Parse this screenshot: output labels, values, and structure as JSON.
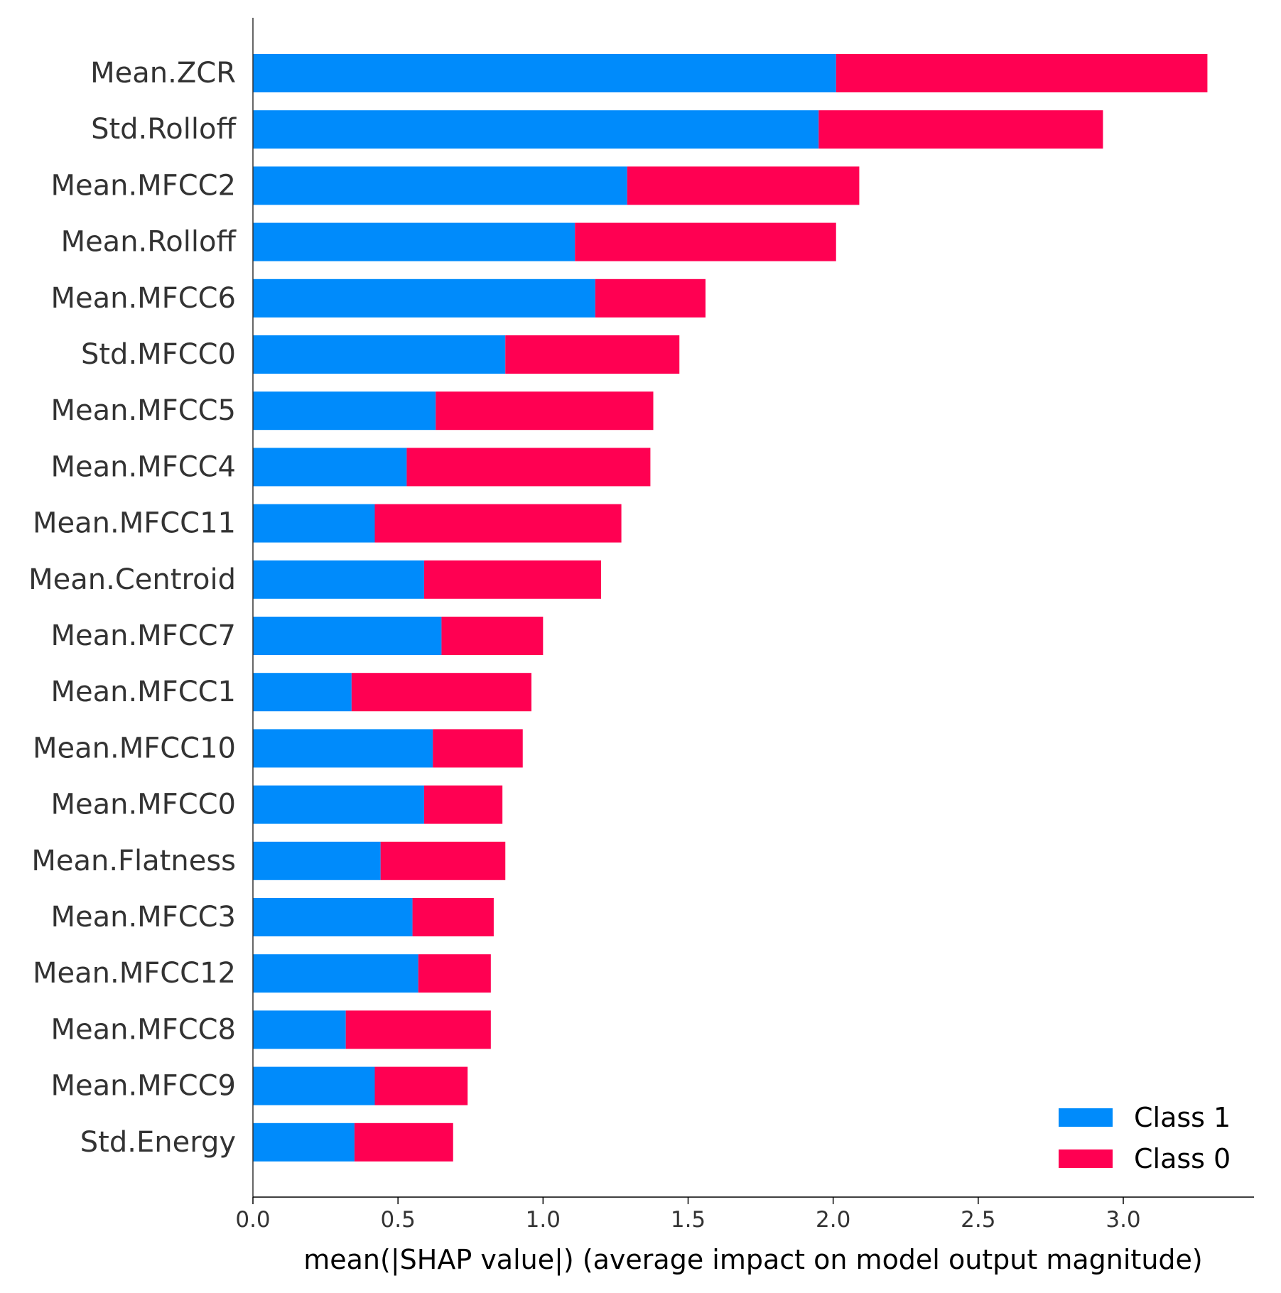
{
  "chart_data": {
    "type": "bar",
    "orientation": "horizontal",
    "stacked": true,
    "xlabel": "mean(|SHAP value|) (average impact on model output magnitude)",
    "ylabel": "",
    "title": "",
    "xlim": [
      0,
      3.45
    ],
    "xticks": [
      "0.0",
      "0.5",
      "1.0",
      "1.5",
      "2.0",
      "2.5",
      "3.0"
    ],
    "xtick_values": [
      0,
      0.5,
      1.0,
      1.5,
      2.0,
      2.5,
      3.0
    ],
    "grid": false,
    "legend_position": "bottom-right",
    "categories": [
      "Mean.ZCR",
      "Std.Rolloff",
      "Mean.MFCC2",
      "Mean.Rolloff",
      "Mean.MFCC6",
      "Std.MFCC0",
      "Mean.MFCC5",
      "Mean.MFCC4",
      "Mean.MFCC11",
      "Mean.Centroid",
      "Mean.MFCC7",
      "Mean.MFCC1",
      "Mean.MFCC10",
      "Mean.MFCC0",
      "Mean.Flatness",
      "Mean.MFCC3",
      "Mean.MFCC12",
      "Mean.MFCC8",
      "Mean.MFCC9",
      "Std.Energy"
    ],
    "series": [
      {
        "name": "Class 1",
        "color": "#008bfb",
        "values": [
          2.01,
          1.95,
          1.29,
          1.11,
          1.18,
          0.87,
          0.63,
          0.53,
          0.42,
          0.59,
          0.65,
          0.34,
          0.62,
          0.59,
          0.44,
          0.55,
          0.57,
          0.32,
          0.42,
          0.35
        ]
      },
      {
        "name": "Class 0",
        "color": "#ff0052",
        "values": [
          1.28,
          0.98,
          0.8,
          0.9,
          0.38,
          0.6,
          0.75,
          0.84,
          0.85,
          0.61,
          0.35,
          0.62,
          0.31,
          0.27,
          0.43,
          0.28,
          0.25,
          0.5,
          0.32,
          0.34
        ]
      }
    ]
  }
}
